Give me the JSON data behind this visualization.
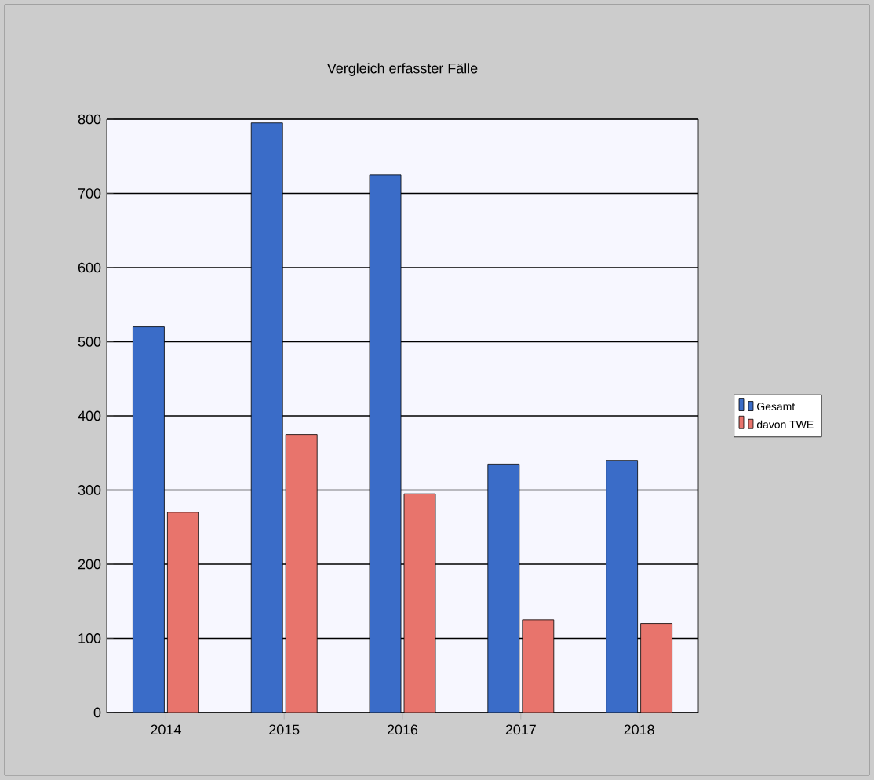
{
  "chart_data": {
    "type": "bar",
    "title": "Vergleich erfasster Fälle",
    "categories": [
      "2014",
      "2015",
      "2016",
      "2017",
      "2018"
    ],
    "series": [
      {
        "name": "Gesamt",
        "color": "#3a6cc8",
        "values": [
          520,
          795,
          725,
          335,
          340
        ]
      },
      {
        "name": "davon TWE",
        "color": "#e8746c",
        "values": [
          270,
          375,
          295,
          125,
          120
        ]
      }
    ],
    "ylim": [
      0,
      800
    ],
    "yticks": [
      0,
      100,
      200,
      300,
      400,
      500,
      600,
      700,
      800
    ],
    "grid": "y",
    "legend": "right"
  }
}
